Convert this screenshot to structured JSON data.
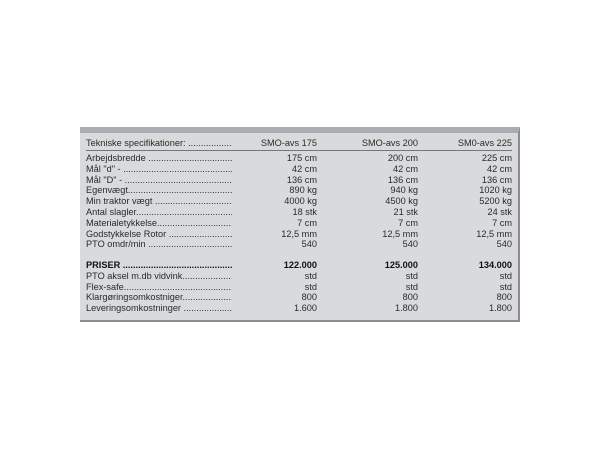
{
  "header": {
    "label": "Tekniske specifikationer: .................",
    "models": [
      "SMO-avs 175",
      "SMO-avs 200",
      "SM0-avs 225"
    ]
  },
  "specs": [
    {
      "label": "Arbejdsbredde ......................................",
      "values": [
        "175 cm",
        "200 cm",
        "225 cm"
      ]
    },
    {
      "label": "Mål \"d\" - ...............................................",
      "values": [
        "42 cm",
        "42 cm",
        "42 cm"
      ]
    },
    {
      "label": "Mål \"D\" - ...............................................",
      "values": [
        "136 cm",
        "136 cm",
        "136 cm"
      ]
    },
    {
      "label": "Egenvægt...............................................",
      "values": [
        "890 kg",
        "940 kg",
        "1020 kg"
      ]
    },
    {
      "label": "Min traktor vægt ....................................",
      "values": [
        "4000 kg",
        "4500 kg",
        "5200 kg"
      ]
    },
    {
      "label": "Antal slagler..........................................",
      "values": [
        "18 stk",
        "21 stk",
        "24 stk"
      ]
    },
    {
      "label": "Materialetykkelse....................................",
      "values": [
        "7 cm",
        "7 cm",
        "7 cm"
      ]
    },
    {
      "label": "Godstykkelse Rotor ..................................",
      "values": [
        "12,5 mm",
        "12,5 mm",
        "12,5 mm"
      ]
    },
    {
      "label": "PTO omdr/min ........................................",
      "values": [
        "540",
        "540",
        "540"
      ]
    }
  ],
  "prices": [
    {
      "label": "PRISER ..............................................",
      "values": [
        "122.000",
        "125.000",
        "134.000"
      ],
      "bold": true
    },
    {
      "label": "PTO aksel m.db vidvink.............................",
      "values": [
        "std",
        "std",
        "std"
      ]
    },
    {
      "label": "Flex-safe................................................",
      "values": [
        "std",
        "std",
        "std"
      ]
    },
    {
      "label": "Klargøringsomkostniger...........................",
      "values": [
        "800",
        "800",
        "800"
      ]
    },
    {
      "label": "Leveringsomkostninger ............................",
      "values": [
        "1.600",
        "1.800",
        "1.800"
      ]
    }
  ]
}
